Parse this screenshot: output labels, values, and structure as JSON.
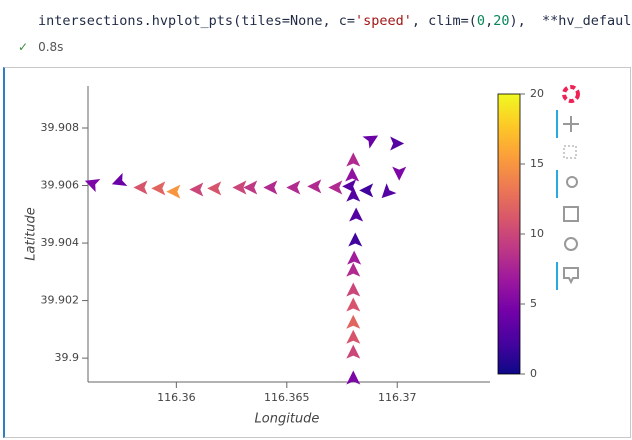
{
  "cell": {
    "code_tokens": [
      "intersections.hvplot_pts(tiles=None, c=",
      "'speed'",
      ", clim=(",
      "0",
      ",",
      "20",
      "),  **hv_defaults)"
    ],
    "status": "✓",
    "time": "0.8s"
  },
  "chart_data": {
    "type": "scatter",
    "xlabel": "Longitude",
    "ylabel": "Latitude",
    "x": [
      116.3562,
      116.35742,
      116.35842,
      116.35923,
      116.35991,
      116.36095,
      116.36176,
      116.3629,
      116.36339,
      116.3643,
      116.36534,
      116.36629,
      116.36724,
      116.36787,
      116.36864,
      116.36955,
      116.36801,
      116.36796,
      116.36801,
      116.36814,
      116.3681,
      116.36805,
      116.36801,
      116.36801,
      116.36801,
      116.36801,
      116.36801,
      116.36801,
      116.36801,
      116.36882,
      116.36995,
      116.37009
    ],
    "y": [
      39.90607,
      39.90614,
      39.90593,
      39.9059,
      39.90579,
      39.90586,
      39.9059,
      39.90593,
      39.90593,
      39.90593,
      39.90593,
      39.90597,
      39.90593,
      39.90597,
      39.90583,
      39.90576,
      39.90687,
      39.90635,
      39.90565,
      39.90496,
      39.90409,
      39.90346,
      39.90304,
      39.90235,
      39.90183,
      39.90123,
      39.90071,
      39.90019,
      39.89929,
      39.9076,
      39.90746,
      39.90645
    ],
    "speed": [
      5,
      4,
      11,
      12,
      15,
      10,
      11,
      10,
      9,
      8,
      8,
      8,
      8,
      3,
      2,
      3,
      8,
      6,
      3,
      3,
      2,
      7,
      8,
      10,
      11,
      12,
      11,
      10,
      5,
      4,
      3,
      5
    ],
    "angle": [
      160,
      200,
      180,
      180,
      180,
      180,
      180,
      180,
      180,
      180,
      180,
      180,
      180,
      180,
      180,
      225,
      90,
      90,
      90,
      90,
      90,
      90,
      90,
      90,
      90,
      90,
      90,
      90,
      90,
      30,
      0,
      270
    ],
    "xlim": [
      116.356,
      116.3742
    ],
    "ylim": [
      39.89917,
      39.90946
    ],
    "xticks": [
      116.36,
      116.365,
      116.37
    ],
    "yticks": [
      39.9,
      39.902,
      39.904,
      39.906,
      39.908
    ],
    "clim": [
      0,
      20
    ],
    "cticks": [
      0,
      5,
      10,
      15,
      20
    ],
    "colormap": [
      "#0d0887",
      "#46039f",
      "#7201a8",
      "#9c179e",
      "#bd3786",
      "#d8576b",
      "#ed7953",
      "#fb9f3a",
      "#fdca26",
      "#f0f921"
    ]
  }
}
